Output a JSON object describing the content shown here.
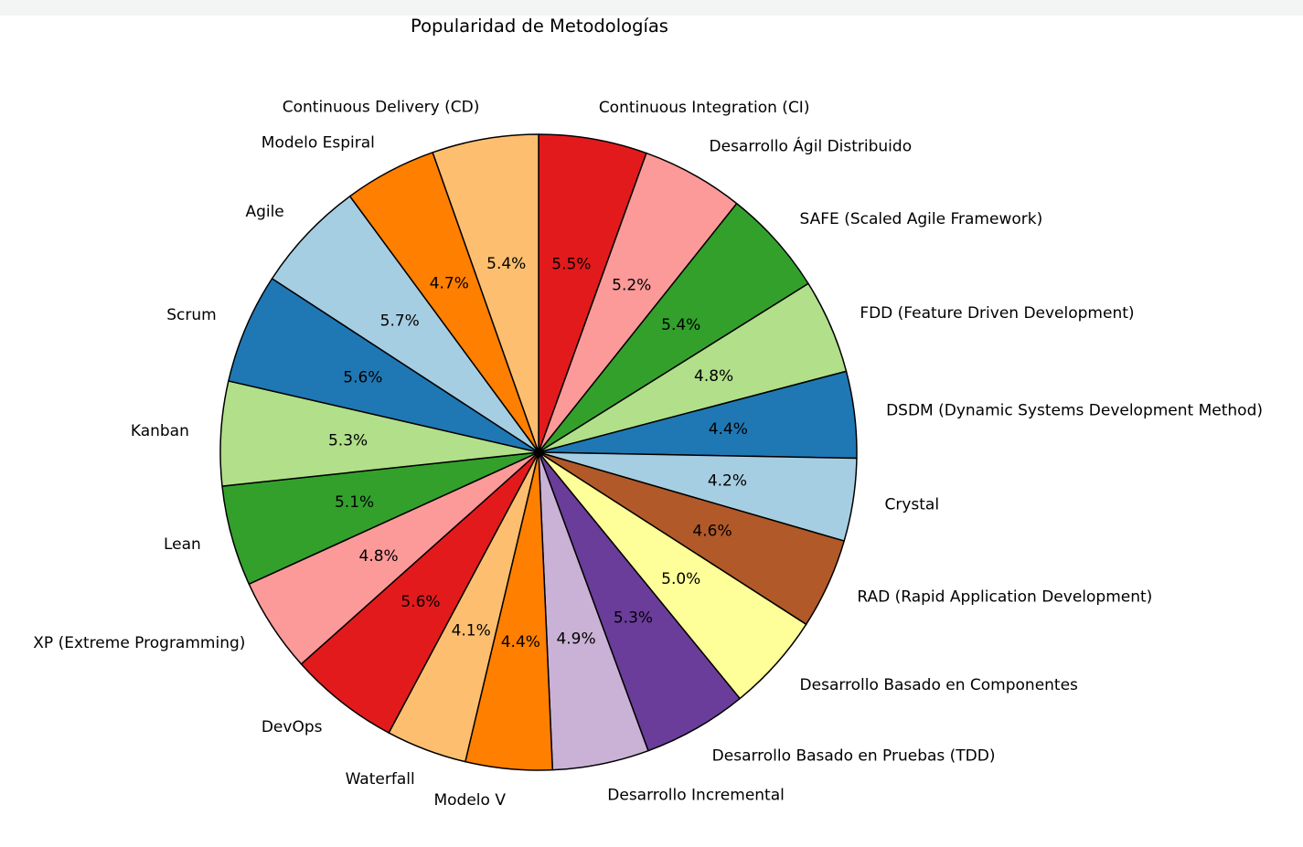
{
  "chart_data": {
    "type": "pie",
    "title": "Popularidad de Metodologías",
    "start_angle_deg": 90,
    "direction": "clockwise",
    "slices": [
      {
        "label": "Continuous Integration (CI)",
        "value": 5.5,
        "pct_label": "5.5%",
        "color": "#e31a1c"
      },
      {
        "label": "Desarrollo Ágil Distribuido",
        "value": 5.2,
        "pct_label": "5.2%",
        "color": "#fb9a99"
      },
      {
        "label": "SAFE (Scaled Agile Framework)",
        "value": 5.4,
        "pct_label": "5.4%",
        "color": "#33a02c"
      },
      {
        "label": "FDD (Feature Driven Development)",
        "value": 4.8,
        "pct_label": "4.8%",
        "color": "#b2df8a"
      },
      {
        "label": "DSDM (Dynamic Systems Development Method)",
        "value": 4.4,
        "pct_label": "4.4%",
        "color": "#1f78b4"
      },
      {
        "label": "Crystal",
        "value": 4.2,
        "pct_label": "4.2%",
        "color": "#a6cee3"
      },
      {
        "label": "RAD (Rapid Application Development)",
        "value": 4.6,
        "pct_label": "4.6%",
        "color": "#b15928"
      },
      {
        "label": "Desarrollo Basado en Componentes",
        "value": 5.0,
        "pct_label": "5.0%",
        "color": "#ffff99"
      },
      {
        "label": "Desarrollo Basado en Pruebas (TDD)",
        "value": 5.3,
        "pct_label": "5.3%",
        "color": "#6a3d9a"
      },
      {
        "label": "Desarrollo Incremental",
        "value": 4.9,
        "pct_label": "4.9%",
        "color": "#cab2d6"
      },
      {
        "label": "Modelo V",
        "value": 4.4,
        "pct_label": "4.4%",
        "color": "#ff7f00"
      },
      {
        "label": "Waterfall",
        "value": 4.1,
        "pct_label": "4.1%",
        "color": "#fdbf6f"
      },
      {
        "label": "DevOps",
        "value": 5.6,
        "pct_label": "5.6%",
        "color": "#e31a1c"
      },
      {
        "label": "XP (Extreme Programming)",
        "value": 4.8,
        "pct_label": "4.8%",
        "color": "#fb9a99"
      },
      {
        "label": "Lean",
        "value": 5.1,
        "pct_label": "5.1%",
        "color": "#33a02c"
      },
      {
        "label": "Kanban",
        "value": 5.3,
        "pct_label": "5.3%",
        "color": "#b2df8a"
      },
      {
        "label": "Scrum",
        "value": 5.6,
        "pct_label": "5.6%",
        "color": "#1f78b4"
      },
      {
        "label": "Agile",
        "value": 5.7,
        "pct_label": "5.7%",
        "color": "#a6cee3"
      },
      {
        "label": "Modelo Espiral",
        "value": 4.7,
        "pct_label": "4.7%",
        "color": "#ff7f00"
      },
      {
        "label": "Continuous Delivery (CD)",
        "value": 5.4,
        "pct_label": "5.4%",
        "color": "#fdbf6f"
      }
    ],
    "edge_color": "#000000"
  }
}
